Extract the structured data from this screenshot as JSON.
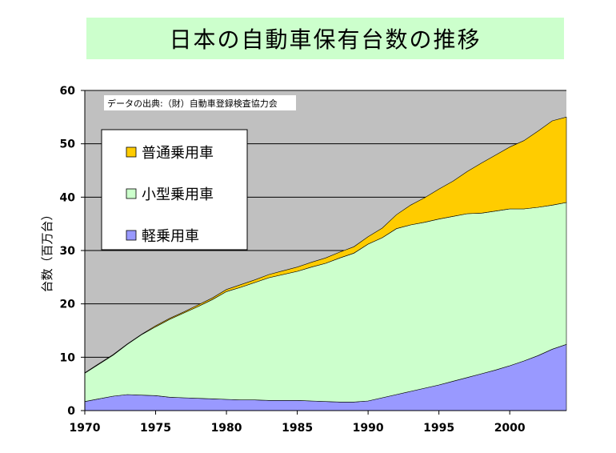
{
  "chart_data": {
    "type": "area",
    "stacked": true,
    "title": "日本の自動車保有台数の推移",
    "ylabel": "台数（百万台）",
    "xlabel": "",
    "annotation": "データの出典:（財）自動車登録検査協力会",
    "xlim": [
      1970,
      2004
    ],
    "ylim": [
      0,
      60
    ],
    "x_ticks": [
      "1970",
      "1975",
      "1980",
      "1985",
      "1990",
      "1995",
      "2000"
    ],
    "x_tick_values": [
      1970,
      1975,
      1980,
      1985,
      1990,
      1995,
      2000
    ],
    "y_ticks": [
      "0",
      "10",
      "20",
      "30",
      "40",
      "50",
      "60"
    ],
    "y_tick_values": [
      0,
      10,
      20,
      30,
      40,
      50,
      60
    ],
    "grid": true,
    "legend_position": "upper-left",
    "x": [
      1970,
      1971,
      1972,
      1973,
      1974,
      1975,
      1976,
      1977,
      1978,
      1979,
      1980,
      1981,
      1982,
      1983,
      1984,
      1985,
      1986,
      1987,
      1988,
      1989,
      1990,
      1991,
      1992,
      1993,
      1994,
      1995,
      1996,
      1997,
      1998,
      1999,
      2000,
      2001,
      2002,
      2003,
      2004
    ],
    "series": [
      {
        "name": "軽乗用車",
        "color": "#9999ff",
        "values": [
          1.7,
          2.2,
          2.7,
          3.0,
          2.9,
          2.8,
          2.5,
          2.4,
          2.3,
          2.2,
          2.1,
          2.0,
          2.0,
          1.9,
          1.9,
          1.9,
          1.8,
          1.7,
          1.6,
          1.6,
          1.8,
          2.4,
          3.0,
          3.6,
          4.2,
          4.8,
          5.5,
          6.2,
          6.9,
          7.6,
          8.4,
          9.3,
          10.3,
          11.5,
          12.4
        ]
      },
      {
        "name": "小型乗用車",
        "color": "#ccffcc",
        "values": [
          5.3,
          6.5,
          7.7,
          9.4,
          11.3,
          12.9,
          14.6,
          15.9,
          17.2,
          18.6,
          20.2,
          21.1,
          22.0,
          23.0,
          23.6,
          24.2,
          25.1,
          25.9,
          27.0,
          27.9,
          29.4,
          30.0,
          31.1,
          31.2,
          31.1,
          31.1,
          30.9,
          30.7,
          30.1,
          29.8,
          29.4,
          28.5,
          27.8,
          27.0,
          26.6
        ]
      },
      {
        "name": "普通乗用車",
        "color": "#ffcc00",
        "values": [
          0.1,
          0.1,
          0.1,
          0.1,
          0.1,
          0.2,
          0.2,
          0.2,
          0.3,
          0.3,
          0.4,
          0.5,
          0.5,
          0.6,
          0.7,
          0.8,
          0.9,
          1.0,
          1.1,
          1.2,
          1.4,
          1.8,
          2.6,
          3.7,
          4.6,
          5.6,
          6.6,
          7.9,
          9.4,
          10.5,
          11.6,
          12.8,
          14.3,
          15.8,
          16.0
        ]
      }
    ]
  }
}
